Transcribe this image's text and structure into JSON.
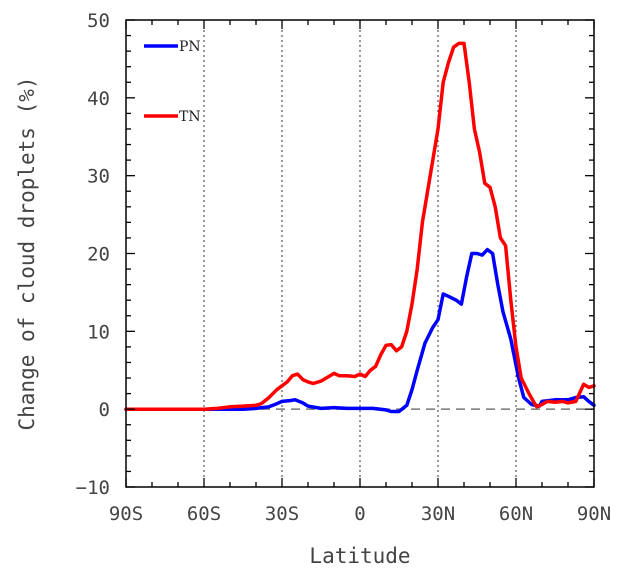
{
  "chart_data": {
    "type": "line",
    "title": "",
    "xlabel": "Latitude",
    "ylabel": "Change of cloud droplets (%)",
    "xlim": [
      -90,
      90
    ],
    "ylim": [
      -10,
      50
    ],
    "xticks": [
      -90,
      -60,
      -30,
      0,
      30,
      60,
      90
    ],
    "xtick_labels": [
      "90S",
      "60S",
      "30S",
      "0",
      "30N",
      "60N",
      "90N"
    ],
    "yticks": [
      -10,
      0,
      10,
      20,
      30,
      40,
      50
    ],
    "ytick_labels": [
      "−10",
      "0",
      "10",
      "20",
      "30",
      "40",
      "50"
    ],
    "vertical_gridlines": [
      -60,
      -30,
      0,
      30,
      60
    ],
    "zero_line": true,
    "legend_placement": "top-left",
    "series": [
      {
        "name": "PN",
        "color": "#0000ff",
        "x": [
          -90,
          -60,
          -45,
          -40,
          -35,
          -32,
          -30,
          -27,
          -25,
          -22,
          -20,
          -15,
          -10,
          -5,
          0,
          5,
          10,
          12,
          15,
          18,
          20,
          22,
          25,
          28,
          30,
          32,
          34,
          37,
          39,
          41,
          43,
          45,
          47,
          49,
          51,
          53,
          55,
          58,
          61,
          63,
          66,
          69,
          70,
          75,
          80,
          83,
          86,
          88,
          90
        ],
        "y": [
          0,
          0,
          0,
          0.1,
          0.3,
          0.7,
          1.0,
          1.1,
          1.2,
          0.8,
          0.4,
          0.1,
          0.2,
          0.1,
          0.1,
          0.1,
          -0.1,
          -0.3,
          -0.3,
          0.5,
          2.5,
          5.0,
          8.5,
          10.5,
          11.5,
          14.8,
          14.5,
          14.0,
          13.5,
          17.0,
          20.0,
          20.0,
          19.8,
          20.5,
          20.0,
          16.0,
          12.5,
          9.0,
          4.0,
          1.5,
          0.6,
          0.4,
          1.0,
          1.2,
          1.2,
          1.5,
          1.6,
          1.0,
          0.5
        ]
      },
      {
        "name": "TN",
        "color": "#ff0000",
        "x": [
          -90,
          -60,
          -55,
          -50,
          -45,
          -40,
          -38,
          -35,
          -32,
          -30,
          -28,
          -26,
          -24,
          -22,
          -20,
          -18,
          -15,
          -12,
          -10,
          -8,
          -5,
          -2,
          0,
          2,
          4,
          6,
          8,
          10,
          12,
          14,
          16,
          18,
          20,
          22,
          24,
          26,
          28,
          30,
          32,
          34,
          36,
          38,
          40,
          42,
          44,
          46,
          48,
          50,
          52,
          54,
          56,
          58,
          60,
          62,
          65,
          67,
          68,
          70,
          72,
          75,
          78,
          80,
          83,
          86,
          88,
          90
        ],
        "y": [
          0,
          0,
          0.1,
          0.3,
          0.4,
          0.5,
          0.7,
          1.5,
          2.5,
          3.0,
          3.5,
          4.3,
          4.5,
          3.8,
          3.5,
          3.3,
          3.6,
          4.2,
          4.6,
          4.3,
          4.3,
          4.2,
          4.5,
          4.2,
          5.0,
          5.5,
          7.0,
          8.2,
          8.3,
          7.5,
          8.0,
          10.0,
          13.5,
          18.0,
          24.0,
          28.0,
          32.0,
          36.0,
          42.0,
          44.5,
          46.5,
          47.0,
          47.0,
          42.0,
          36.0,
          33.0,
          29.0,
          28.5,
          26.0,
          22.0,
          21.0,
          14.0,
          8.0,
          4.0,
          2.0,
          0.8,
          0.3,
          0.6,
          1.0,
          0.9,
          1.0,
          0.8,
          1.0,
          3.2,
          2.8,
          3.0
        ]
      }
    ]
  }
}
